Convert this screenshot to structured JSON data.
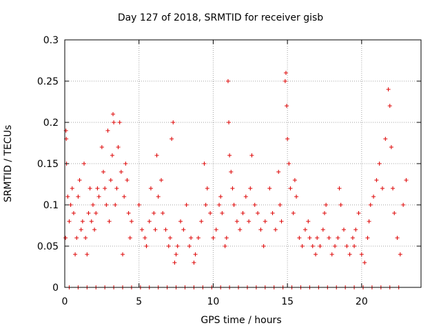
{
  "chart_data": {
    "type": "scatter",
    "title": "Day 127 of 2018, SRMTID for receiver gisb",
    "xlabel": "GPS time / hours",
    "ylabel": "SRMTID / TECUs",
    "xlim": [
      0,
      24
    ],
    "ylim": [
      0,
      0.3
    ],
    "xticks": [
      0,
      5,
      10,
      15,
      20
    ],
    "yticks": [
      0,
      0.05,
      0.1,
      0.15,
      0.2,
      0.25,
      0.3
    ],
    "ytick_labels": [
      "0",
      "0.05",
      "0.1",
      "0.15",
      "0.2",
      "0.25",
      "0.3"
    ],
    "grid": true,
    "marker": "+",
    "color": "#dd0000",
    "series": [
      {
        "name": "SRMTID",
        "points": [
          [
            0.05,
            0.06
          ],
          [
            0.08,
            0.19
          ],
          [
            0.1,
            0.18
          ],
          [
            0.12,
            0.15
          ],
          [
            0.2,
            0.11
          ],
          [
            0.3,
            0.08
          ],
          [
            0.4,
            0.1
          ],
          [
            0.5,
            0.12
          ],
          [
            0.6,
            0.09
          ],
          [
            0.7,
            0.04
          ],
          [
            0.8,
            0.06
          ],
          [
            0.9,
            0.11
          ],
          [
            1.0,
            0.13
          ],
          [
            1.1,
            0.07
          ],
          [
            1.2,
            0.08
          ],
          [
            1.3,
            0.15
          ],
          [
            1.4,
            0.06
          ],
          [
            1.5,
            0.04
          ],
          [
            1.6,
            0.09
          ],
          [
            1.7,
            0.12
          ],
          [
            1.8,
            0.08
          ],
          [
            1.9,
            0.1
          ],
          [
            2.0,
            0.07
          ],
          [
            2.1,
            0.09
          ],
          [
            2.2,
            0.12
          ],
          [
            2.3,
            0.11
          ],
          [
            2.5,
            0.17
          ],
          [
            2.6,
            0.14
          ],
          [
            2.7,
            0.12
          ],
          [
            2.8,
            0.1
          ],
          [
            2.9,
            0.19
          ],
          [
            3.0,
            0.08
          ],
          [
            3.1,
            0.13
          ],
          [
            3.2,
            0.16
          ],
          [
            3.25,
            0.21
          ],
          [
            3.3,
            0.2
          ],
          [
            3.4,
            0.1
          ],
          [
            3.5,
            0.12
          ],
          [
            3.6,
            0.17
          ],
          [
            3.7,
            0.2
          ],
          [
            3.8,
            0.14
          ],
          [
            3.9,
            0.04
          ],
          [
            4.0,
            0.11
          ],
          [
            4.1,
            0.15
          ],
          [
            4.2,
            0.13
          ],
          [
            4.3,
            0.09
          ],
          [
            4.4,
            0.06
          ],
          [
            4.5,
            0.08
          ],
          [
            5.0,
            0.1
          ],
          [
            5.2,
            0.07
          ],
          [
            5.4,
            0.06
          ],
          [
            5.5,
            0.05
          ],
          [
            5.7,
            0.08
          ],
          [
            5.8,
            0.12
          ],
          [
            6.0,
            0.09
          ],
          [
            6.1,
            0.07
          ],
          [
            6.2,
            0.16
          ],
          [
            6.3,
            0.11
          ],
          [
            6.5,
            0.13
          ],
          [
            6.6,
            0.09
          ],
          [
            6.8,
            0.07
          ],
          [
            7.0,
            0.05
          ],
          [
            7.1,
            0.06
          ],
          [
            7.2,
            0.18
          ],
          [
            7.3,
            0.2
          ],
          [
            7.4,
            0.03
          ],
          [
            7.5,
            0.04
          ],
          [
            7.6,
            0.05
          ],
          [
            7.8,
            0.08
          ],
          [
            8.0,
            0.07
          ],
          [
            8.2,
            0.1
          ],
          [
            8.4,
            0.05
          ],
          [
            8.5,
            0.06
          ],
          [
            8.7,
            0.03
          ],
          [
            8.8,
            0.04
          ],
          [
            9.0,
            0.06
          ],
          [
            9.2,
            0.08
          ],
          [
            9.4,
            0.15
          ],
          [
            9.5,
            0.1
          ],
          [
            9.6,
            0.12
          ],
          [
            9.8,
            0.09
          ],
          [
            10.0,
            0.06
          ],
          [
            10.2,
            0.07
          ],
          [
            10.4,
            0.1
          ],
          [
            10.5,
            0.11
          ],
          [
            10.6,
            0.09
          ],
          [
            10.8,
            0.05
          ],
          [
            10.9,
            0.06
          ],
          [
            11.0,
            0.25
          ],
          [
            11.05,
            0.2
          ],
          [
            11.1,
            0.16
          ],
          [
            11.2,
            0.14
          ],
          [
            11.3,
            0.12
          ],
          [
            11.4,
            0.1
          ],
          [
            11.6,
            0.08
          ],
          [
            11.8,
            0.07
          ],
          [
            12.0,
            0.09
          ],
          [
            12.2,
            0.11
          ],
          [
            12.4,
            0.08
          ],
          [
            12.5,
            0.12
          ],
          [
            12.6,
            0.16
          ],
          [
            12.8,
            0.1
          ],
          [
            13.0,
            0.09
          ],
          [
            13.2,
            0.07
          ],
          [
            13.4,
            0.05
          ],
          [
            13.5,
            0.08
          ],
          [
            13.8,
            0.12
          ],
          [
            14.0,
            0.09
          ],
          [
            14.2,
            0.07
          ],
          [
            14.4,
            0.14
          ],
          [
            14.5,
            0.1
          ],
          [
            14.6,
            0.08
          ],
          [
            14.85,
            0.25
          ],
          [
            14.9,
            0.26
          ],
          [
            14.95,
            0.22
          ],
          [
            15.0,
            0.18
          ],
          [
            15.1,
            0.15
          ],
          [
            15.2,
            0.12
          ],
          [
            15.4,
            0.09
          ],
          [
            15.5,
            0.13
          ],
          [
            15.6,
            0.11
          ],
          [
            15.8,
            0.06
          ],
          [
            16.0,
            0.05
          ],
          [
            16.2,
            0.07
          ],
          [
            16.4,
            0.08
          ],
          [
            16.5,
            0.06
          ],
          [
            16.7,
            0.05
          ],
          [
            16.9,
            0.04
          ],
          [
            17.0,
            0.06
          ],
          [
            17.2,
            0.05
          ],
          [
            17.4,
            0.07
          ],
          [
            17.5,
            0.09
          ],
          [
            17.6,
            0.1
          ],
          [
            17.8,
            0.06
          ],
          [
            18.0,
            0.04
          ],
          [
            18.2,
            0.05
          ],
          [
            18.4,
            0.06
          ],
          [
            18.5,
            0.12
          ],
          [
            18.6,
            0.1
          ],
          [
            18.8,
            0.07
          ],
          [
            19.0,
            0.05
          ],
          [
            19.2,
            0.04
          ],
          [
            19.4,
            0.06
          ],
          [
            19.5,
            0.05
          ],
          [
            19.6,
            0.07
          ],
          [
            19.8,
            0.09
          ],
          [
            20.0,
            0.04
          ],
          [
            20.2,
            0.03
          ],
          [
            20.4,
            0.06
          ],
          [
            20.5,
            0.08
          ],
          [
            20.6,
            0.1
          ],
          [
            20.8,
            0.11
          ],
          [
            21.0,
            0.13
          ],
          [
            21.2,
            0.15
          ],
          [
            21.4,
            0.12
          ],
          [
            21.6,
            0.18
          ],
          [
            21.8,
            0.24
          ],
          [
            21.9,
            0.22
          ],
          [
            22.0,
            0.17
          ],
          [
            22.1,
            0.12
          ],
          [
            22.2,
            0.09
          ],
          [
            22.4,
            0.06
          ],
          [
            22.6,
            0.04
          ],
          [
            22.8,
            0.1
          ],
          [
            23.0,
            0.13
          ],
          [
            0.3,
            0
          ],
          [
            0.9,
            0
          ],
          [
            1.5,
            0
          ],
          [
            2.1,
            0
          ],
          [
            2.7,
            0
          ],
          [
            3.3,
            0
          ],
          [
            3.9,
            0
          ],
          [
            4.5,
            0
          ],
          [
            5.1,
            0
          ],
          [
            5.7,
            0
          ],
          [
            6.3,
            0
          ],
          [
            6.9,
            0
          ],
          [
            7.5,
            0
          ],
          [
            8.1,
            0
          ],
          [
            8.7,
            0
          ],
          [
            9.3,
            0
          ],
          [
            9.9,
            0
          ],
          [
            10.5,
            0
          ],
          [
            11.1,
            0
          ],
          [
            11.7,
            0
          ],
          [
            12.3,
            0
          ],
          [
            12.9,
            0
          ],
          [
            13.5,
            0
          ],
          [
            14.1,
            0
          ],
          [
            14.7,
            0
          ],
          [
            15.3,
            0
          ],
          [
            15.9,
            0
          ],
          [
            16.5,
            0
          ],
          [
            17.1,
            0
          ],
          [
            17.7,
            0
          ],
          [
            18.3,
            0
          ],
          [
            18.9,
            0
          ],
          [
            19.5,
            0
          ],
          [
            20.1,
            0
          ],
          [
            20.7,
            0
          ],
          [
            21.3,
            0
          ],
          [
            21.9,
            0
          ],
          [
            22.5,
            0
          ]
        ]
      }
    ]
  }
}
